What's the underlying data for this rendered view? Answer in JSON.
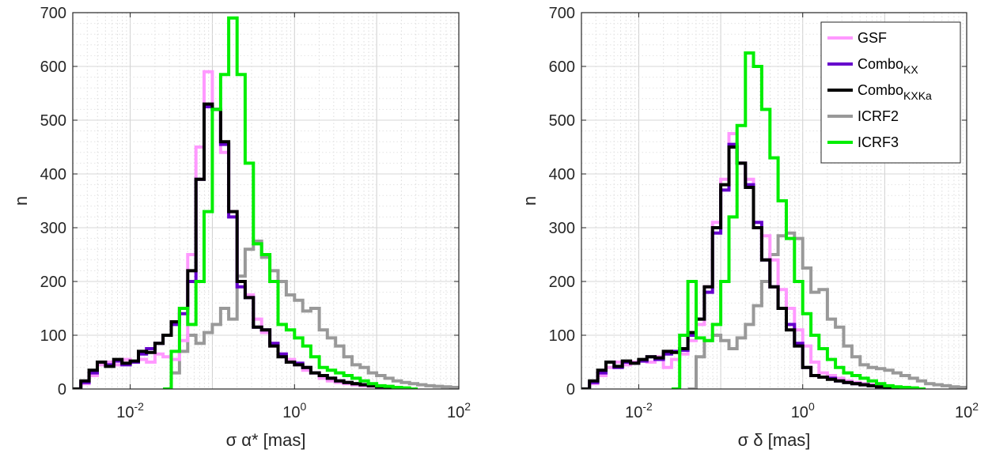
{
  "chart_data": [
    {
      "type": "line",
      "xscale": "log",
      "xlim": [
        0.002,
        100
      ],
      "ylim": [
        0,
        700
      ],
      "grid": true,
      "xlabel": "σ α* [mas]",
      "ylabel": "n",
      "xticks": [
        {
          "value": 0.01,
          "base": "10",
          "exp": "-2"
        },
        {
          "value": 1,
          "base": "10",
          "exp": "0"
        },
        {
          "value": 100,
          "base": "10",
          "exp": "2"
        }
      ],
      "yticks": [
        "0",
        "100",
        "200",
        "300",
        "400",
        "500",
        "600",
        "700"
      ],
      "series": [
        {
          "name": "ICRF2",
          "color": "#999999",
          "x": [
            0.0251,
            0.0316,
            0.0398,
            0.0501,
            0.0631,
            0.0794,
            0.1,
            0.126,
            0.158,
            0.2,
            0.251,
            0.316,
            0.398,
            0.501,
            0.631,
            0.794,
            1,
            1.26,
            1.58,
            2,
            2.51,
            3.16,
            3.98,
            5.01,
            6.31,
            7.94,
            10,
            12.6,
            15.8,
            20,
            25.1,
            31.6,
            39.8,
            50.1,
            63.1,
            79.4
          ],
          "y": [
            0,
            30,
            70,
            100,
            85,
            105,
            120,
            150,
            130,
            210,
            260,
            275,
            245,
            220,
            200,
            175,
            165,
            145,
            150,
            110,
            95,
            80,
            60,
            45,
            40,
            30,
            25,
            20,
            15,
            12,
            10,
            8,
            6,
            5,
            4,
            3
          ]
        },
        {
          "name": "GSF",
          "color": "#ff99ff",
          "x": [
            0.002,
            0.00251,
            0.00316,
            0.00398,
            0.00501,
            0.00631,
            0.00794,
            0.01,
            0.0126,
            0.0158,
            0.02,
            0.0251,
            0.0316,
            0.0398,
            0.0501,
            0.0631,
            0.0794,
            0.1,
            0.126,
            0.158,
            0.2,
            0.251,
            0.316,
            0.398,
            0.501,
            0.631,
            0.794,
            1,
            1.26,
            1.58,
            2,
            2.51,
            3.16,
            3.98,
            5.01,
            6.31,
            7.94,
            10,
            12.6,
            15.8,
            20
          ],
          "y": [
            0,
            10,
            25,
            45,
            50,
            45,
            55,
            50,
            55,
            50,
            65,
            60,
            55,
            90,
            250,
            450,
            590,
            520,
            440,
            330,
            200,
            175,
            130,
            105,
            80,
            65,
            55,
            45,
            35,
            30,
            20,
            15,
            12,
            10,
            8,
            6,
            5,
            4,
            3,
            2,
            0
          ]
        },
        {
          "name": "ComboKX",
          "color": "#6600cc",
          "x": [
            0.002,
            0.00251,
            0.00316,
            0.00398,
            0.00501,
            0.00631,
            0.00794,
            0.01,
            0.0126,
            0.0158,
            0.02,
            0.0251,
            0.0316,
            0.0398,
            0.0501,
            0.0631,
            0.0794,
            0.1,
            0.126,
            0.158,
            0.2,
            0.251,
            0.316,
            0.398,
            0.501,
            0.631,
            0.794,
            1,
            1.26,
            1.58,
            2,
            2.51,
            3.16,
            3.98,
            5.01,
            6.31,
            7.94,
            10,
            12.6,
            15.8,
            20
          ],
          "y": [
            0,
            12,
            30,
            50,
            45,
            52,
            45,
            50,
            65,
            75,
            85,
            100,
            120,
            140,
            200,
            390,
            525,
            520,
            455,
            320,
            190,
            170,
            115,
            110,
            85,
            65,
            50,
            48,
            40,
            30,
            25,
            20,
            15,
            12,
            10,
            8,
            6,
            4,
            3,
            2,
            0
          ]
        },
        {
          "name": "ComboKXKa",
          "color": "#000000",
          "x": [
            0.002,
            0.00251,
            0.00316,
            0.00398,
            0.00501,
            0.00631,
            0.00794,
            0.01,
            0.0126,
            0.0158,
            0.02,
            0.0251,
            0.0316,
            0.0398,
            0.0501,
            0.0631,
            0.0794,
            0.1,
            0.126,
            0.158,
            0.2,
            0.251,
            0.316,
            0.398,
            0.501,
            0.631,
            0.794,
            1,
            1.26,
            1.58,
            2,
            2.51,
            3.16,
            3.98,
            5.01,
            6.31,
            7.94,
            10,
            12.6,
            15.8,
            20
          ],
          "y": [
            0,
            15,
            35,
            50,
            42,
            55,
            48,
            52,
            70,
            68,
            85,
            100,
            125,
            150,
            220,
            390,
            530,
            520,
            460,
            330,
            200,
            170,
            115,
            110,
            80,
            60,
            50,
            45,
            40,
            30,
            25,
            20,
            15,
            12,
            10,
            8,
            6,
            4,
            3,
            2,
            0
          ]
        },
        {
          "name": "ICRF3",
          "color": "#00ee00",
          "x": [
            0.0251,
            0.0316,
            0.0398,
            0.0501,
            0.0631,
            0.0794,
            0.1,
            0.126,
            0.158,
            0.2,
            0.251,
            0.316,
            0.398,
            0.501,
            0.631,
            0.794,
            1,
            1.26,
            1.58,
            2,
            2.51,
            3.16,
            3.98,
            5.01,
            6.31,
            7.94,
            10,
            12.6,
            15.8,
            20,
            25.1
          ],
          "y": [
            0,
            70,
            150,
            120,
            200,
            330,
            520,
            585,
            690,
            585,
            420,
            270,
            250,
            200,
            120,
            110,
            95,
            80,
            60,
            40,
            35,
            30,
            25,
            20,
            15,
            10,
            6,
            5,
            3,
            2,
            0
          ]
        }
      ]
    },
    {
      "type": "line",
      "xscale": "log",
      "xlim": [
        0.002,
        100
      ],
      "ylim": [
        0,
        700
      ],
      "grid": true,
      "xlabel": "σ δ [mas]",
      "ylabel": "n",
      "xticks": [
        {
          "value": 0.01,
          "base": "10",
          "exp": "-2"
        },
        {
          "value": 1,
          "base": "10",
          "exp": "0"
        },
        {
          "value": 100,
          "base": "10",
          "exp": "2"
        }
      ],
      "yticks": [
        "0",
        "100",
        "200",
        "300",
        "400",
        "500",
        "600",
        "700"
      ],
      "series": [
        {
          "name": "ICRF2",
          "color": "#999999",
          "x": [
            0.0398,
            0.0501,
            0.0631,
            0.0794,
            0.1,
            0.126,
            0.158,
            0.2,
            0.251,
            0.316,
            0.398,
            0.501,
            0.631,
            0.794,
            1,
            1.26,
            1.58,
            2,
            2.51,
            3.16,
            3.98,
            5.01,
            6.31,
            7.94,
            10,
            12.6,
            15.8,
            20,
            25.1,
            31.6,
            39.8,
            50.1,
            63.1,
            79.4
          ],
          "y": [
            0,
            60,
            90,
            100,
            90,
            75,
            95,
            120,
            155,
            200,
            250,
            285,
            290,
            280,
            225,
            180,
            185,
            130,
            115,
            80,
            60,
            45,
            40,
            38,
            35,
            30,
            25,
            20,
            15,
            10,
            8,
            6,
            4,
            3
          ]
        },
        {
          "name": "GSF",
          "color": "#ff99ff",
          "x": [
            0.002,
            0.00251,
            0.00316,
            0.00398,
            0.00501,
            0.00631,
            0.00794,
            0.01,
            0.0126,
            0.0158,
            0.02,
            0.0251,
            0.0316,
            0.0398,
            0.0501,
            0.0631,
            0.0794,
            0.1,
            0.126,
            0.158,
            0.2,
            0.251,
            0.316,
            0.398,
            0.501,
            0.631,
            0.794,
            1,
            1.26,
            1.58,
            2,
            2.51,
            3.16,
            3.98,
            5.01,
            6.31,
            7.94,
            10,
            12.6,
            15.8,
            20
          ],
          "y": [
            0,
            10,
            25,
            40,
            50,
            45,
            50,
            52,
            50,
            60,
            40,
            55,
            65,
            90,
            120,
            190,
            310,
            390,
            475,
            420,
            390,
            300,
            285,
            240,
            185,
            150,
            110,
            80,
            50,
            30,
            25,
            20,
            15,
            12,
            10,
            8,
            6,
            4,
            3,
            2,
            0
          ]
        },
        {
          "name": "ComboKX",
          "color": "#6600cc",
          "x": [
            0.002,
            0.00251,
            0.00316,
            0.00398,
            0.00501,
            0.00631,
            0.00794,
            0.01,
            0.0126,
            0.0158,
            0.02,
            0.0251,
            0.0316,
            0.0398,
            0.0501,
            0.0631,
            0.0794,
            0.1,
            0.126,
            0.158,
            0.2,
            0.251,
            0.316,
            0.398,
            0.501,
            0.631,
            0.794,
            1,
            1.26,
            1.58,
            2,
            2.51,
            3.16,
            3.98,
            5.01,
            6.31,
            7.94,
            10,
            12.6,
            15.8,
            20
          ],
          "y": [
            0,
            12,
            30,
            50,
            40,
            50,
            48,
            52,
            60,
            55,
            65,
            70,
            72,
            100,
            130,
            180,
            290,
            370,
            455,
            420,
            380,
            310,
            240,
            190,
            150,
            120,
            85,
            40,
            25,
            22,
            20,
            15,
            12,
            10,
            8,
            6,
            4,
            3,
            2,
            1,
            0
          ]
        },
        {
          "name": "ComboKXKa",
          "color": "#000000",
          "x": [
            0.002,
            0.00251,
            0.00316,
            0.00398,
            0.00501,
            0.00631,
            0.00794,
            0.01,
            0.0126,
            0.0158,
            0.02,
            0.0251,
            0.0316,
            0.0398,
            0.0501,
            0.0631,
            0.0794,
            0.1,
            0.126,
            0.158,
            0.2,
            0.251,
            0.316,
            0.398,
            0.501,
            0.631,
            0.794,
            1,
            1.26,
            1.58,
            2,
            2.51,
            3.16,
            3.98,
            5.01,
            6.31,
            7.94,
            10,
            12.6,
            15.8,
            20
          ],
          "y": [
            0,
            15,
            35,
            50,
            42,
            52,
            48,
            55,
            60,
            58,
            70,
            68,
            75,
            105,
            130,
            190,
            300,
            380,
            450,
            420,
            375,
            300,
            240,
            190,
            150,
            110,
            80,
            40,
            25,
            22,
            18,
            15,
            12,
            10,
            8,
            6,
            4,
            3,
            2,
            1,
            0
          ]
        },
        {
          "name": "ICRF3",
          "color": "#00ee00",
          "x": [
            0.0251,
            0.0316,
            0.0398,
            0.0501,
            0.0631,
            0.0794,
            0.1,
            0.126,
            0.158,
            0.2,
            0.251,
            0.316,
            0.398,
            0.501,
            0.631,
            0.794,
            1,
            1.26,
            1.58,
            2,
            2.51,
            3.16,
            3.98,
            5.01,
            6.31,
            7.94,
            10,
            12.6,
            15.8,
            20,
            25.1
          ],
          "y": [
            0,
            100,
            200,
            95,
            90,
            120,
            200,
            320,
            490,
            625,
            600,
            520,
            430,
            350,
            280,
            200,
            140,
            100,
            75,
            55,
            40,
            30,
            25,
            20,
            15,
            10,
            6,
            4,
            3,
            2,
            0
          ]
        }
      ]
    }
  ],
  "legend": {
    "items": [
      {
        "label": "GSF",
        "sub": "",
        "color": "#ff99ff"
      },
      {
        "label": "Combo",
        "sub": "KX",
        "color": "#6600cc"
      },
      {
        "label": "Combo",
        "sub": "KXKa",
        "color": "#000000"
      },
      {
        "label": "ICRF2",
        "sub": "",
        "color": "#999999"
      },
      {
        "label": "ICRF3",
        "sub": "",
        "color": "#00ee00"
      }
    ]
  }
}
